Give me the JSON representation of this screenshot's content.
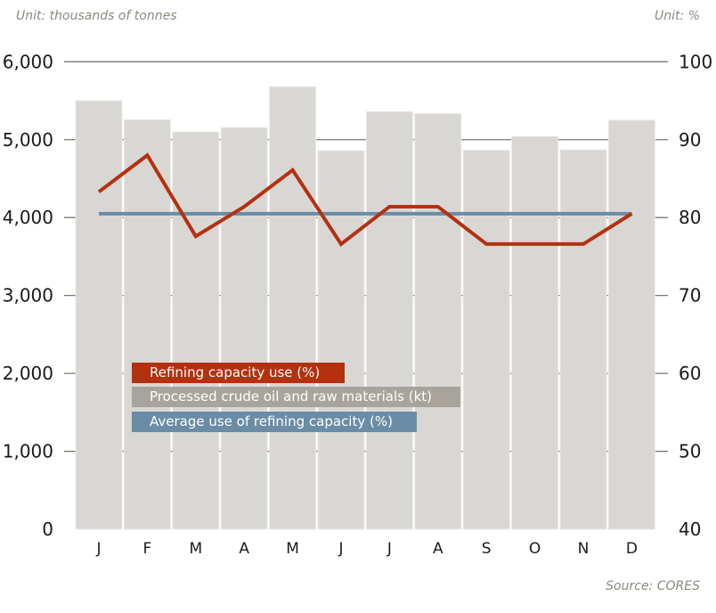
{
  "chart_data": {
    "type": "bar+line",
    "left_axis_unit": "Unit: thousands of tonnes",
    "right_axis_unit": "Unit: %",
    "source": "Source: CORES",
    "categories": [
      "J",
      "F",
      "M",
      "A",
      "M",
      "J",
      "J",
      "A",
      "S",
      "O",
      "N",
      "D"
    ],
    "left_ylim": [
      0,
      6000
    ],
    "left_ticks": [
      "0",
      "1,000",
      "2,000",
      "3,000",
      "4,000",
      "5,000",
      "6,000"
    ],
    "right_ylim": [
      40,
      100
    ],
    "right_ticks": [
      "40",
      "50",
      "60",
      "70",
      "80",
      "90",
      "100"
    ],
    "grid": true,
    "legend_position": "center-left",
    "series": [
      {
        "name": "Processed crude oil and raw materials (kt)",
        "type": "bar",
        "axis": "left",
        "color": "#d9d7d3",
        "legend_color": "#a8a49c",
        "values": [
          5500,
          5255,
          5100,
          5155,
          5680,
          4860,
          5360,
          5335,
          4865,
          5040,
          4870,
          5250
        ]
      },
      {
        "name": "Refining capacity use (%)",
        "type": "line",
        "axis": "right",
        "color": "#b5300f",
        "values": [
          83.3,
          88.0,
          77.6,
          81.4,
          86.1,
          76.6,
          81.4,
          81.4,
          76.6,
          76.6,
          76.6,
          80.5
        ]
      },
      {
        "name": "Average use of refining capacity (%)",
        "type": "line",
        "axis": "right",
        "color": "#6a8ca6",
        "values": [
          80.5,
          80.5,
          80.5,
          80.5,
          80.5,
          80.5,
          80.5,
          80.5,
          80.5,
          80.5,
          80.5,
          80.5
        ]
      }
    ]
  }
}
